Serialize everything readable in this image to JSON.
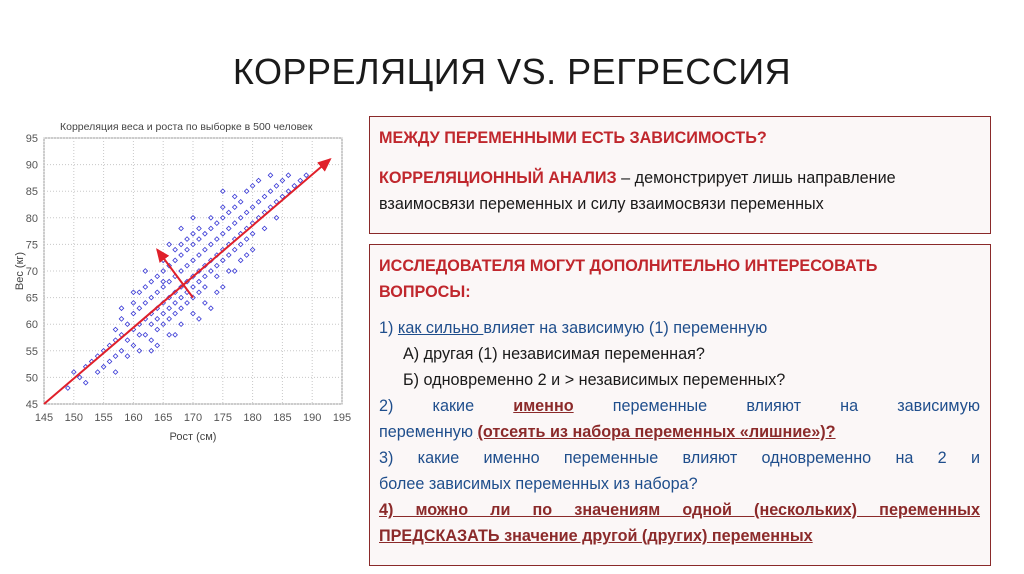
{
  "slide": {
    "title": "КОРРЕЛЯЦИЯ VS. РЕГРЕССИЯ"
  },
  "box1": {
    "question": "МЕЖДУ ПЕРЕМЕННЫМИ ЕСТЬ ЗАВИСИМОСТЬ?",
    "term": "КОРРЕЛЯЦИОННЫЙ АНАЛИЗ",
    "definition_1": " – демонстрирует лишь направление",
    "definition_2": "взаимосвязи переменных и силу взаимосвязи переменных"
  },
  "box2": {
    "heading_1": "ИССЛЕДОВАТЕЛЯ МОГУТ ДОПОЛНИТЕЛЬНО ИНТЕРЕСОВАТЬ",
    "heading_2": "ВОПРОСЫ:",
    "q1_prefix": "1) ",
    "q1_underlined": "как сильно ",
    "q1_rest": "влияет на зависимую (1) переменную",
    "q1_a": "А) другая (1) независимая переменная?",
    "q1_b": "Б) одновременно 2 и > независимых переменных?",
    "q2_start": "2) какие",
    "q2_emph": "именно",
    "q2_mid": "переменные влияют на зависимую",
    "q2_end_plain": "переменную ",
    "q2_end_emph": "(отсеять из набора переменных «лишние»)?",
    "q3_line1": "3) какие именно переменные влияют одновременно на 2 и",
    "q3_line2": "более зависимых переменных из набора?",
    "q4_line1": "4) можно ли по значениям одной (нескольких) переменных",
    "q4_line2": "ПРЕДСКАЗАТЬ значение другой (других) переменных"
  },
  "colors": {
    "red": "#c0272d",
    "blue": "#1f4e8c",
    "maroon": "#8b2a2a",
    "point": "#3a3ad6",
    "arrow": "#e0202a"
  },
  "chart_data": {
    "type": "scatter",
    "title": "Корреляция веса и роста по выборке в 500 человек",
    "xlabel": "Рост (см)",
    "ylabel": "Вес (кг)",
    "xlim": [
      145,
      195
    ],
    "ylim": [
      45,
      95
    ],
    "xticks": [
      "145",
      "150",
      "155",
      "160",
      "165",
      "170",
      "175",
      "180",
      "185",
      "190",
      "195"
    ],
    "yticks": [
      "45",
      "50",
      "55",
      "60",
      "65",
      "70",
      "75",
      "80",
      "85",
      "90",
      "95"
    ],
    "grid": true,
    "trend": {
      "from": [
        145,
        45
      ],
      "to": [
        193,
        91
      ]
    },
    "axis_arrow": {
      "from": [
        170,
        65
      ],
      "to": [
        164,
        74
      ]
    },
    "points": [
      [
        149,
        48
      ],
      [
        150,
        51
      ],
      [
        151,
        50
      ],
      [
        152,
        52
      ],
      [
        152,
        49
      ],
      [
        153,
        53
      ],
      [
        154,
        54
      ],
      [
        154,
        51
      ],
      [
        155,
        55
      ],
      [
        155,
        52
      ],
      [
        156,
        56
      ],
      [
        156,
        53
      ],
      [
        157,
        57
      ],
      [
        157,
        54
      ],
      [
        157,
        59
      ],
      [
        158,
        58
      ],
      [
        158,
        55
      ],
      [
        158,
        61
      ],
      [
        159,
        57
      ],
      [
        159,
        60
      ],
      [
        159,
        54
      ],
      [
        160,
        62
      ],
      [
        160,
        59
      ],
      [
        160,
        56
      ],
      [
        160,
        64
      ],
      [
        161,
        60
      ],
      [
        161,
        63
      ],
      [
        161,
        58
      ],
      [
        161,
        66
      ],
      [
        162,
        61
      ],
      [
        162,
        64
      ],
      [
        162,
        58
      ],
      [
        162,
        67
      ],
      [
        163,
        62
      ],
      [
        163,
        65
      ],
      [
        163,
        60
      ],
      [
        163,
        68
      ],
      [
        163,
        57
      ],
      [
        164,
        63
      ],
      [
        164,
        66
      ],
      [
        164,
        61
      ],
      [
        164,
        69
      ],
      [
        164,
        59
      ],
      [
        165,
        64
      ],
      [
        165,
        67
      ],
      [
        165,
        62
      ],
      [
        165,
        70
      ],
      [
        165,
        60
      ],
      [
        165,
        72
      ],
      [
        166,
        65
      ],
      [
        166,
        68
      ],
      [
        166,
        63
      ],
      [
        166,
        71
      ],
      [
        166,
        61
      ],
      [
        167,
        66
      ],
      [
        167,
        69
      ],
      [
        167,
        64
      ],
      [
        167,
        72
      ],
      [
        167,
        62
      ],
      [
        167,
        74
      ],
      [
        168,
        67
      ],
      [
        168,
        70
      ],
      [
        168,
        65
      ],
      [
        168,
        73
      ],
      [
        168,
        63
      ],
      [
        168,
        75
      ],
      [
        169,
        68
      ],
      [
        169,
        71
      ],
      [
        169,
        66
      ],
      [
        169,
        74
      ],
      [
        169,
        64
      ],
      [
        169,
        76
      ],
      [
        170,
        69
      ],
      [
        170,
        72
      ],
      [
        170,
        67
      ],
      [
        170,
        75
      ],
      [
        170,
        65
      ],
      [
        170,
        77
      ],
      [
        171,
        70
      ],
      [
        171,
        73
      ],
      [
        171,
        68
      ],
      [
        171,
        76
      ],
      [
        171,
        66
      ],
      [
        171,
        78
      ],
      [
        172,
        71
      ],
      [
        172,
        74
      ],
      [
        172,
        69
      ],
      [
        172,
        77
      ],
      [
        172,
        67
      ],
      [
        173,
        72
      ],
      [
        173,
        75
      ],
      [
        173,
        70
      ],
      [
        173,
        78
      ],
      [
        173,
        80
      ],
      [
        174,
        73
      ],
      [
        174,
        76
      ],
      [
        174,
        71
      ],
      [
        174,
        79
      ],
      [
        174,
        69
      ],
      [
        175,
        74
      ],
      [
        175,
        77
      ],
      [
        175,
        72
      ],
      [
        175,
        80
      ],
      [
        175,
        82
      ],
      [
        176,
        75
      ],
      [
        176,
        78
      ],
      [
        176,
        73
      ],
      [
        176,
        81
      ],
      [
        177,
        76
      ],
      [
        177,
        79
      ],
      [
        177,
        74
      ],
      [
        177,
        82
      ],
      [
        177,
        84
      ],
      [
        178,
        77
      ],
      [
        178,
        80
      ],
      [
        178,
        75
      ],
      [
        178,
        83
      ],
      [
        179,
        78
      ],
      [
        179,
        81
      ],
      [
        179,
        85
      ],
      [
        179,
        76
      ],
      [
        180,
        79
      ],
      [
        180,
        82
      ],
      [
        180,
        86
      ],
      [
        180,
        77
      ],
      [
        181,
        80
      ],
      [
        181,
        83
      ],
      [
        181,
        87
      ],
      [
        182,
        81
      ],
      [
        182,
        84
      ],
      [
        182,
        78
      ],
      [
        183,
        82
      ],
      [
        183,
        85
      ],
      [
        183,
        88
      ],
      [
        184,
        83
      ],
      [
        184,
        86
      ],
      [
        184,
        80
      ],
      [
        185,
        84
      ],
      [
        185,
        87
      ],
      [
        186,
        88
      ],
      [
        186,
        85
      ],
      [
        187,
        86
      ],
      [
        188,
        87
      ],
      [
        189,
        88
      ],
      [
        160,
        66
      ],
      [
        163,
        55
      ],
      [
        166,
        58
      ],
      [
        168,
        60
      ],
      [
        170,
        62
      ],
      [
        172,
        64
      ],
      [
        174,
        66
      ],
      [
        176,
        70
      ],
      [
        178,
        72
      ],
      [
        180,
        74
      ],
      [
        166,
        75
      ],
      [
        168,
        78
      ],
      [
        165,
        68
      ],
      [
        170,
        80
      ],
      [
        162,
        70
      ],
      [
        175,
        85
      ],
      [
        158,
        63
      ],
      [
        157,
        51
      ],
      [
        161,
        55
      ],
      [
        164,
        56
      ],
      [
        167,
        58
      ],
      [
        171,
        61
      ],
      [
        173,
        63
      ],
      [
        175,
        67
      ],
      [
        177,
        70
      ],
      [
        179,
        73
      ]
    ]
  }
}
